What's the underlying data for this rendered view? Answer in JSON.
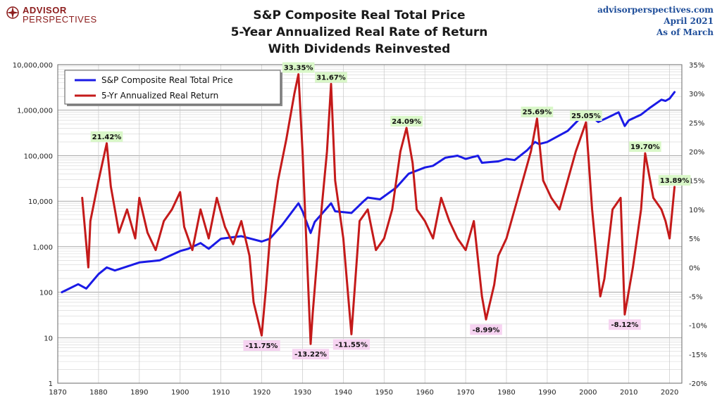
{
  "header": {
    "logo_line1": "ADVISOR",
    "logo_line2": "PERSPECTIVES",
    "title_lines": [
      "S&P Composite Real Total Price",
      "5-Year Annualized Real Rate of Return",
      "With Dividends Reinvested"
    ],
    "source_lines": [
      "advisorperspectives.com",
      "April 2021",
      "As of March"
    ]
  },
  "colors": {
    "price_series": "#1a1ae6",
    "return_series": "#c41a1a",
    "positive_label_bg": "#d9f7c8",
    "negative_label_bg": "#f6d3f1",
    "logo": "#8c1d1d",
    "source_text": "#1f4e9a"
  },
  "chart_data": {
    "type": "line",
    "x_axis": {
      "range": [
        1870,
        2023
      ],
      "ticks": [
        1870,
        1880,
        1890,
        1900,
        1910,
        1920,
        1930,
        1940,
        1950,
        1960,
        1970,
        1980,
        1990,
        2000,
        2010,
        2020
      ]
    },
    "y_left": {
      "scale": "log",
      "range": [
        1,
        10000000
      ],
      "tick_labels": [
        "1",
        "10",
        "100",
        "1,000",
        "10,000",
        "100,000",
        "1,000,000",
        "10,000,000"
      ]
    },
    "y_right": {
      "range": [
        -20,
        35
      ],
      "tick_labels": [
        "35%",
        "30%",
        "25%",
        "20%",
        "15%",
        "10%",
        "5%",
        "0%",
        "-5%",
        "-10%",
        "-15%",
        "-20%"
      ]
    },
    "grid": true,
    "legend_position": "top-left",
    "series": [
      {
        "name": "S&P Composite Real Total Price",
        "axis": "left",
        "x": [
          1871,
          1875,
          1877,
          1880,
          1882,
          1884,
          1890,
          1895,
          1900,
          1902,
          1905,
          1907,
          1910,
          1915,
          1920,
          1922,
          1925,
          1929,
          1930,
          1932,
          1933,
          1937,
          1938,
          1942,
          1945,
          1946,
          1949,
          1953,
          1956,
          1960,
          1962,
          1965,
          1968,
          1970,
          1973,
          1974,
          1978,
          1980,
          1982,
          1985,
          1987,
          1988,
          1990,
          1995,
          1999.5,
          2000,
          2002.5,
          2005,
          2007.5,
          2009,
          2010,
          2013,
          2015,
          2018,
          2019,
          2020,
          2021.2
        ],
        "y": [
          100,
          150,
          120,
          250,
          350,
          300,
          450,
          500,
          800,
          900,
          1200,
          900,
          1500,
          1700,
          1300,
          1500,
          3000,
          9000,
          6000,
          2000,
          3500,
          9000,
          6000,
          5500,
          10000,
          12000,
          11000,
          20000,
          40000,
          55000,
          60000,
          90000,
          100000,
          85000,
          100000,
          70000,
          75000,
          85000,
          80000,
          130000,
          200000,
          180000,
          200000,
          350000,
          900000,
          850000,
          550000,
          700000,
          900000,
          450000,
          600000,
          800000,
          1100000,
          1700000,
          1600000,
          1800000,
          2500000
        ]
      },
      {
        "name": "5-Yr Annualized Real Return",
        "axis": "right",
        "x": [
          1876,
          1877,
          1877.5,
          1878,
          1880,
          1882,
          1883,
          1885,
          1887,
          1889,
          1890,
          1892,
          1894,
          1896,
          1898,
          1900,
          1901,
          1903,
          1905,
          1907,
          1909,
          1911,
          1913,
          1915,
          1917,
          1918,
          1920,
          1921,
          1922,
          1924,
          1926,
          1928,
          1929,
          1930,
          1932,
          1932.5,
          1934,
          1936,
          1937,
          1938,
          1940,
          1942,
          1944,
          1946,
          1948,
          1950,
          1952,
          1954,
          1955.5,
          1957,
          1958,
          1960,
          1962,
          1964,
          1966,
          1968,
          1970,
          1972,
          1974,
          1975,
          1977,
          1978,
          1980,
          1982,
          1984,
          1986,
          1987.5,
          1989,
          1991,
          1993,
          1995,
          1997,
          1999.5,
          2001,
          2003,
          2004,
          2006,
          2008,
          2009,
          2011,
          2013,
          2014,
          2016,
          2018,
          2019,
          2020,
          2021.2
        ],
        "y": [
          12,
          4,
          0,
          8,
          15,
          21.42,
          14,
          6,
          10,
          5,
          12,
          6,
          3,
          8,
          10,
          13,
          7,
          3,
          10,
          5,
          12,
          7,
          4,
          8,
          2,
          -6,
          -11.75,
          -4,
          5,
          15,
          22,
          30,
          33.35,
          20,
          -13.22,
          -8,
          5,
          20,
          31.67,
          15,
          5,
          -11.55,
          8,
          10,
          3,
          5,
          10,
          20,
          24.09,
          18,
          10,
          8,
          5,
          12,
          8,
          5,
          3,
          8,
          -5,
          -8.99,
          -3,
          2,
          5,
          10,
          15,
          20,
          25.69,
          15,
          12,
          10,
          15,
          20,
          25.05,
          10,
          -5,
          -2,
          10,
          12,
          -8.12,
          0,
          10,
          19.7,
          12,
          10,
          8,
          5,
          13.89
        ]
      }
    ],
    "data_labels": [
      {
        "text": "21.42%",
        "x": 1882,
        "y": 21.42,
        "type": "positive"
      },
      {
        "text": "33.35%",
        "x": 1929,
        "y": 33.35,
        "type": "positive"
      },
      {
        "text": "31.67%",
        "x": 1937,
        "y": 31.67,
        "type": "positive"
      },
      {
        "text": "24.09%",
        "x": 1955.5,
        "y": 24.09,
        "type": "positive"
      },
      {
        "text": "25.69%",
        "x": 1987.5,
        "y": 25.69,
        "type": "positive"
      },
      {
        "text": "25.05%",
        "x": 1999.5,
        "y": 25.05,
        "type": "positive"
      },
      {
        "text": "19.70%",
        "x": 2014,
        "y": 19.7,
        "type": "positive"
      },
      {
        "text": "13.89%",
        "x": 2021.2,
        "y": 13.89,
        "type": "positive"
      },
      {
        "text": "-11.75%",
        "x": 1920,
        "y": -11.75,
        "type": "negative"
      },
      {
        "text": "-13.22%",
        "x": 1932,
        "y": -13.22,
        "type": "negative"
      },
      {
        "text": "-11.55%",
        "x": 1942,
        "y": -11.55,
        "type": "negative"
      },
      {
        "text": "-8.99%",
        "x": 1975,
        "y": -8.99,
        "type": "negative"
      },
      {
        "text": "-8.12%",
        "x": 2009,
        "y": -8.12,
        "type": "negative"
      }
    ]
  }
}
